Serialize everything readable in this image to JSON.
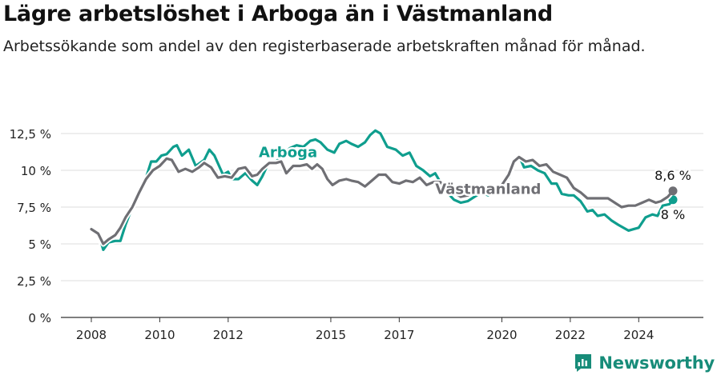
{
  "header": {
    "title": "Lägre arbetslöshet i Arboga än i Västmanland",
    "subtitle": "Arbetssökande som andel av den registerbaserade arbetskraften månad för månad."
  },
  "brand": {
    "name": "Newsworthy"
  },
  "colors": {
    "arboga": "#0f9e8e",
    "vastmanland": "#6f6f74",
    "grid": "#dddddd",
    "text": "#222222"
  },
  "chart_data": {
    "type": "line",
    "title": "Lägre arbetslöshet i Arboga än i Västmanland",
    "xlabel": "",
    "ylabel": "",
    "ylim": [
      0,
      12.5
    ],
    "y_ticks": [
      0,
      2.5,
      5,
      7.5,
      10,
      12.5
    ],
    "y_tick_labels": [
      "0 %",
      "2,5 %",
      "5 %",
      "7,5 %",
      "10 %",
      "12,5 %"
    ],
    "x_ticks": [
      2008,
      2010,
      2012,
      2015,
      2017,
      2020,
      2022,
      2024
    ],
    "x_tick_labels": [
      "2008",
      "2010",
      "2012",
      "2015",
      "2017",
      "2020",
      "2022",
      "2024"
    ],
    "grid": true,
    "legend": "direct labels",
    "end_labels": {
      "Arboga": "8 %",
      "Västmanland": "8,6 %"
    },
    "series": [
      {
        "name": "Arboga",
        "color": "#0f9e8e",
        "points": [
          [
            2008.0,
            6.1
          ],
          [
            2008.2,
            5.8
          ],
          [
            2008.35,
            4.6
          ],
          [
            2008.5,
            5.1
          ],
          [
            2008.7,
            5.2
          ],
          [
            2008.85,
            5.2
          ],
          [
            2009.0,
            6.3
          ],
          [
            2009.2,
            7.5
          ],
          [
            2009.4,
            8.5
          ],
          [
            2009.6,
            9.5
          ],
          [
            2009.75,
            10.6
          ],
          [
            2009.9,
            10.6
          ],
          [
            2010.05,
            11.0
          ],
          [
            2010.2,
            11.1
          ],
          [
            2010.4,
            11.6
          ],
          [
            2010.5,
            11.7
          ],
          [
            2010.65,
            11.0
          ],
          [
            2010.85,
            11.4
          ],
          [
            2011.05,
            10.3
          ],
          [
            2011.3,
            10.7
          ],
          [
            2011.45,
            11.4
          ],
          [
            2011.6,
            11.0
          ],
          [
            2011.85,
            9.7
          ],
          [
            2012.0,
            9.9
          ],
          [
            2012.1,
            9.4
          ],
          [
            2012.3,
            9.4
          ],
          [
            2012.5,
            9.8
          ],
          [
            2012.7,
            9.3
          ],
          [
            2012.85,
            9.0
          ],
          [
            2013.0,
            9.6
          ],
          [
            2013.2,
            10.6
          ],
          [
            2013.4,
            10.6
          ],
          [
            2013.6,
            11.0
          ],
          [
            2013.8,
            11.5
          ],
          [
            2014.0,
            11.7
          ],
          [
            2014.2,
            11.6
          ],
          [
            2014.4,
            12.0
          ],
          [
            2014.55,
            12.1
          ],
          [
            2014.7,
            11.9
          ],
          [
            2014.9,
            11.4
          ],
          [
            2015.1,
            11.2
          ],
          [
            2015.25,
            11.8
          ],
          [
            2015.45,
            12.0
          ],
          [
            2015.6,
            11.8
          ],
          [
            2015.8,
            11.6
          ],
          [
            2016.0,
            11.9
          ],
          [
            2016.15,
            12.4
          ],
          [
            2016.3,
            12.7
          ],
          [
            2016.45,
            12.5
          ],
          [
            2016.65,
            11.6
          ],
          [
            2016.9,
            11.4
          ],
          [
            2017.1,
            11.0
          ],
          [
            2017.3,
            11.2
          ],
          [
            2017.5,
            10.3
          ],
          [
            2017.7,
            10.0
          ],
          [
            2017.9,
            9.6
          ],
          [
            2018.05,
            9.8
          ],
          [
            2018.2,
            9.2
          ],
          [
            2018.4,
            8.5
          ],
          [
            2018.6,
            8.0
          ],
          [
            2018.8,
            7.8
          ],
          [
            2019.0,
            7.9
          ],
          [
            2019.2,
            8.2
          ],
          [
            2019.4,
            8.5
          ],
          [
            2019.6,
            8.3
          ],
          [
            2019.8,
            8.7
          ],
          [
            2020.0,
            9.1
          ],
          [
            2020.2,
            9.5
          ],
          [
            2020.35,
            10.5
          ],
          [
            2020.5,
            11.0
          ],
          [
            2020.65,
            10.2
          ],
          [
            2020.85,
            10.3
          ],
          [
            2021.05,
            10.0
          ],
          [
            2021.25,
            9.8
          ],
          [
            2021.45,
            9.1
          ],
          [
            2021.6,
            9.1
          ],
          [
            2021.75,
            8.4
          ],
          [
            2021.95,
            8.3
          ],
          [
            2022.1,
            8.3
          ],
          [
            2022.3,
            7.9
          ],
          [
            2022.5,
            7.2
          ],
          [
            2022.65,
            7.3
          ],
          [
            2022.8,
            6.9
          ],
          [
            2023.0,
            7.0
          ],
          [
            2023.2,
            6.6
          ],
          [
            2023.4,
            6.3
          ],
          [
            2023.55,
            6.1
          ],
          [
            2023.7,
            5.9
          ],
          [
            2023.85,
            6.0
          ],
          [
            2024.0,
            6.1
          ],
          [
            2024.2,
            6.8
          ],
          [
            2024.4,
            7.0
          ],
          [
            2024.55,
            6.9
          ],
          [
            2024.7,
            7.6
          ],
          [
            2024.9,
            7.7
          ],
          [
            2025.0,
            8.0
          ]
        ]
      },
      {
        "name": "Västmanland",
        "color": "#6f6f74",
        "points": [
          [
            2008.0,
            6.0
          ],
          [
            2008.2,
            5.7
          ],
          [
            2008.35,
            5.0
          ],
          [
            2008.5,
            5.3
          ],
          [
            2008.7,
            5.6
          ],
          [
            2008.85,
            6.1
          ],
          [
            2009.0,
            6.8
          ],
          [
            2009.2,
            7.5
          ],
          [
            2009.4,
            8.5
          ],
          [
            2009.6,
            9.4
          ],
          [
            2009.8,
            10.0
          ],
          [
            2010.0,
            10.3
          ],
          [
            2010.2,
            10.8
          ],
          [
            2010.35,
            10.7
          ],
          [
            2010.55,
            9.9
          ],
          [
            2010.75,
            10.1
          ],
          [
            2010.95,
            9.9
          ],
          [
            2011.15,
            10.2
          ],
          [
            2011.3,
            10.5
          ],
          [
            2011.5,
            10.2
          ],
          [
            2011.7,
            9.5
          ],
          [
            2011.9,
            9.6
          ],
          [
            2012.1,
            9.5
          ],
          [
            2012.3,
            10.1
          ],
          [
            2012.5,
            10.2
          ],
          [
            2012.7,
            9.6
          ],
          [
            2012.85,
            9.7
          ],
          [
            2013.0,
            10.1
          ],
          [
            2013.2,
            10.5
          ],
          [
            2013.4,
            10.5
          ],
          [
            2013.55,
            10.6
          ],
          [
            2013.7,
            9.8
          ],
          [
            2013.9,
            10.3
          ],
          [
            2014.1,
            10.3
          ],
          [
            2014.3,
            10.4
          ],
          [
            2014.45,
            10.1
          ],
          [
            2014.6,
            10.4
          ],
          [
            2014.75,
            10.1
          ],
          [
            2014.9,
            9.4
          ],
          [
            2015.05,
            9.0
          ],
          [
            2015.25,
            9.3
          ],
          [
            2015.45,
            9.4
          ],
          [
            2015.6,
            9.3
          ],
          [
            2015.8,
            9.2
          ],
          [
            2016.0,
            8.9
          ],
          [
            2016.2,
            9.3
          ],
          [
            2016.4,
            9.7
          ],
          [
            2016.6,
            9.7
          ],
          [
            2016.8,
            9.2
          ],
          [
            2017.0,
            9.1
          ],
          [
            2017.2,
            9.3
          ],
          [
            2017.4,
            9.2
          ],
          [
            2017.6,
            9.5
          ],
          [
            2017.8,
            9.0
          ],
          [
            2018.0,
            9.2
          ],
          [
            2018.2,
            9.2
          ],
          [
            2018.4,
            8.7
          ],
          [
            2018.6,
            8.5
          ],
          [
            2018.8,
            8.2
          ],
          [
            2019.0,
            8.3
          ],
          [
            2019.2,
            8.5
          ],
          [
            2019.4,
            8.6
          ],
          [
            2019.6,
            8.5
          ],
          [
            2019.8,
            8.7
          ],
          [
            2020.0,
            9.0
          ],
          [
            2020.2,
            9.7
          ],
          [
            2020.35,
            10.6
          ],
          [
            2020.5,
            10.9
          ],
          [
            2020.7,
            10.6
          ],
          [
            2020.9,
            10.7
          ],
          [
            2021.1,
            10.3
          ],
          [
            2021.3,
            10.4
          ],
          [
            2021.5,
            9.9
          ],
          [
            2021.7,
            9.7
          ],
          [
            2021.9,
            9.5
          ],
          [
            2022.1,
            8.8
          ],
          [
            2022.3,
            8.5
          ],
          [
            2022.5,
            8.1
          ],
          [
            2022.7,
            8.1
          ],
          [
            2022.9,
            8.1
          ],
          [
            2023.1,
            8.1
          ],
          [
            2023.3,
            7.8
          ],
          [
            2023.5,
            7.5
          ],
          [
            2023.7,
            7.6
          ],
          [
            2023.9,
            7.6
          ],
          [
            2024.1,
            7.8
          ],
          [
            2024.3,
            8.0
          ],
          [
            2024.5,
            7.8
          ],
          [
            2024.65,
            7.9
          ],
          [
            2024.85,
            8.2
          ],
          [
            2025.0,
            8.6
          ]
        ]
      }
    ]
  }
}
